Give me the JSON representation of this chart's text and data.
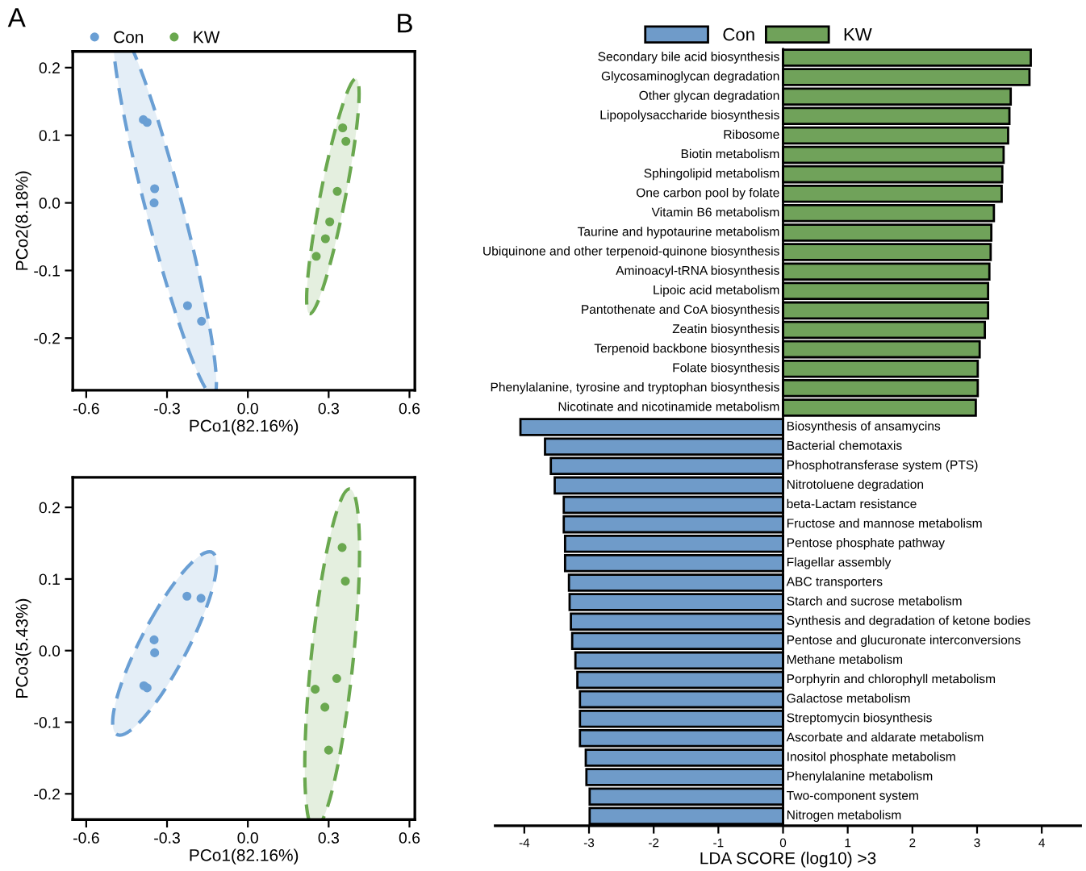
{
  "chart_data": [
    {
      "type": "scatter",
      "xlabel": "PCo1(82.16%)",
      "ylabel": "PCo2(8.18%)",
      "annotations": [
        "A"
      ],
      "marker": "circle",
      "legend": "top left",
      "grid": false,
      "xlim": [
        -0.65,
        0.62
      ],
      "ylim": [
        -0.277,
        0.224
      ],
      "xticks": [
        -0.6,
        -0.3,
        {
          "value": 0,
          "label": "0.0"
        },
        0.3,
        0.6
      ],
      "yticks": [
        -0.2,
        -0.1,
        {
          "value": 0,
          "label": "0.0"
        },
        0.1,
        0.2
      ],
      "series": [
        {
          "name": "Con",
          "color": "#6a9fd4",
          "x": [
            -0.388,
            -0.374,
            -0.346,
            -0.348,
            -0.224,
            -0.172
          ],
          "values": [
            0.123,
            0.119,
            0.021,
            0.0,
            -0.152,
            -0.175
          ]
        },
        {
          "name": "KW",
          "color": "#6aa84f",
          "x": [
            0.352,
            0.364,
            0.332,
            0.304,
            0.288,
            0.254
          ],
          "values": [
            0.111,
            0.091,
            0.017,
            -0.028,
            -0.053,
            -0.079
          ]
        }
      ]
    },
    {
      "type": "scatter",
      "xlabel": "PCo1(82.16%)",
      "ylabel": "PCo3(5.43%)",
      "marker": "circle",
      "grid": false,
      "xlim": [
        -0.65,
        0.62
      ],
      "ylim": [
        -0.236,
        0.242
      ],
      "xticks": [
        -0.6,
        -0.3,
        {
          "value": 0,
          "label": "0.0"
        },
        0.3,
        0.6
      ],
      "yticks": [
        -0.2,
        -0.1,
        {
          "value": 0,
          "label": "0.0"
        },
        0.1,
        0.2
      ],
      "series": [
        {
          "color": "#6a9fd4",
          "x": [
            -0.226,
            -0.174,
            -0.348,
            -0.346,
            -0.386,
            -0.374
          ],
          "values": [
            0.076,
            0.073,
            0.015,
            -0.003,
            -0.049,
            -0.052
          ]
        },
        {
          "color": "#6aa84f",
          "x": [
            0.35,
            0.362,
            0.33,
            0.25,
            0.286,
            0.3
          ],
          "values": [
            0.144,
            0.097,
            -0.039,
            -0.054,
            -0.079,
            -0.139
          ]
        }
      ]
    },
    {
      "type": "bar",
      "orientation": "horizontal",
      "xlabel": "LDA SCORE (log10) >3",
      "annotations": [
        "B"
      ],
      "legend": "top",
      "grid": false,
      "xlim": [
        -4.45,
        4.6
      ],
      "xticks": [
        -4,
        -3,
        -2,
        -1,
        0,
        1,
        2,
        3,
        4
      ],
      "categories": [
        "Secondary bile acid biosynthesis",
        "Glycosaminoglycan degradation",
        "Other glycan degradation",
        "Lipopolysaccharide biosynthesis",
        "Ribosome",
        "Biotin metabolism",
        "Sphingolipid metabolism",
        "One carbon pool by folate",
        "Vitamin B6 metabolism",
        "Taurine and hypotaurine metabolism",
        "Ubiquinone and other terpenoid-quinone biosynthesis",
        "Aminoacyl-tRNA biosynthesis",
        "Lipoic acid metabolism",
        "Pantothenate and CoA biosynthesis",
        "Zeatin biosynthesis",
        "Terpenoid backbone biosynthesis",
        "Folate biosynthesis",
        "Phenylalanine, tyrosine and tryptophan biosynthesis",
        "Nicotinate and nicotinamide metabolism",
        "Biosynthesis of ansamycins",
        "Bacterial chemotaxis",
        "Phosphotransferase system (PTS)",
        "Nitrotoluene degradation",
        "beta-Lactam resistance",
        "Fructose and mannose metabolism",
        "Pentose phosphate pathway",
        "Flagellar assembly",
        "ABC transporters",
        "Starch and sucrose metabolism",
        "Synthesis and degradation of ketone bodies",
        "Pentose and glucuronate interconversions",
        "Methane metabolism",
        "Porphyrin and chlorophyll metabolism",
        "Galactose metabolism",
        "Streptomycin biosynthesis",
        "Ascorbate and aldarate metabolism",
        "Inositol phosphate metabolism",
        "Phenylalanine metabolism",
        "Two-component system",
        "Nitrogen metabolism"
      ],
      "series": [
        {
          "name": "Con",
          "color": "#6f9bc9",
          "values": [
            null,
            null,
            null,
            null,
            null,
            null,
            null,
            null,
            null,
            null,
            null,
            null,
            null,
            null,
            null,
            null,
            null,
            null,
            null,
            -4.06,
            -3.68,
            -3.59,
            -3.53,
            -3.39,
            -3.39,
            -3.37,
            -3.37,
            -3.31,
            -3.3,
            -3.28,
            -3.26,
            -3.21,
            -3.18,
            -3.14,
            -3.14,
            -3.14,
            -3.05,
            -3.04,
            -2.99,
            -2.99
          ]
        },
        {
          "name": "KW",
          "color": "#70a25a",
          "values": [
            3.83,
            3.81,
            3.52,
            3.5,
            3.48,
            3.41,
            3.39,
            3.38,
            3.26,
            3.22,
            3.21,
            3.19,
            3.17,
            3.17,
            3.12,
            3.04,
            3.01,
            3.01,
            2.98,
            null,
            null,
            null,
            null,
            null,
            null,
            null,
            null,
            null,
            null,
            null,
            null,
            null,
            null,
            null,
            null,
            null,
            null,
            null,
            null,
            null
          ]
        }
      ]
    }
  ]
}
